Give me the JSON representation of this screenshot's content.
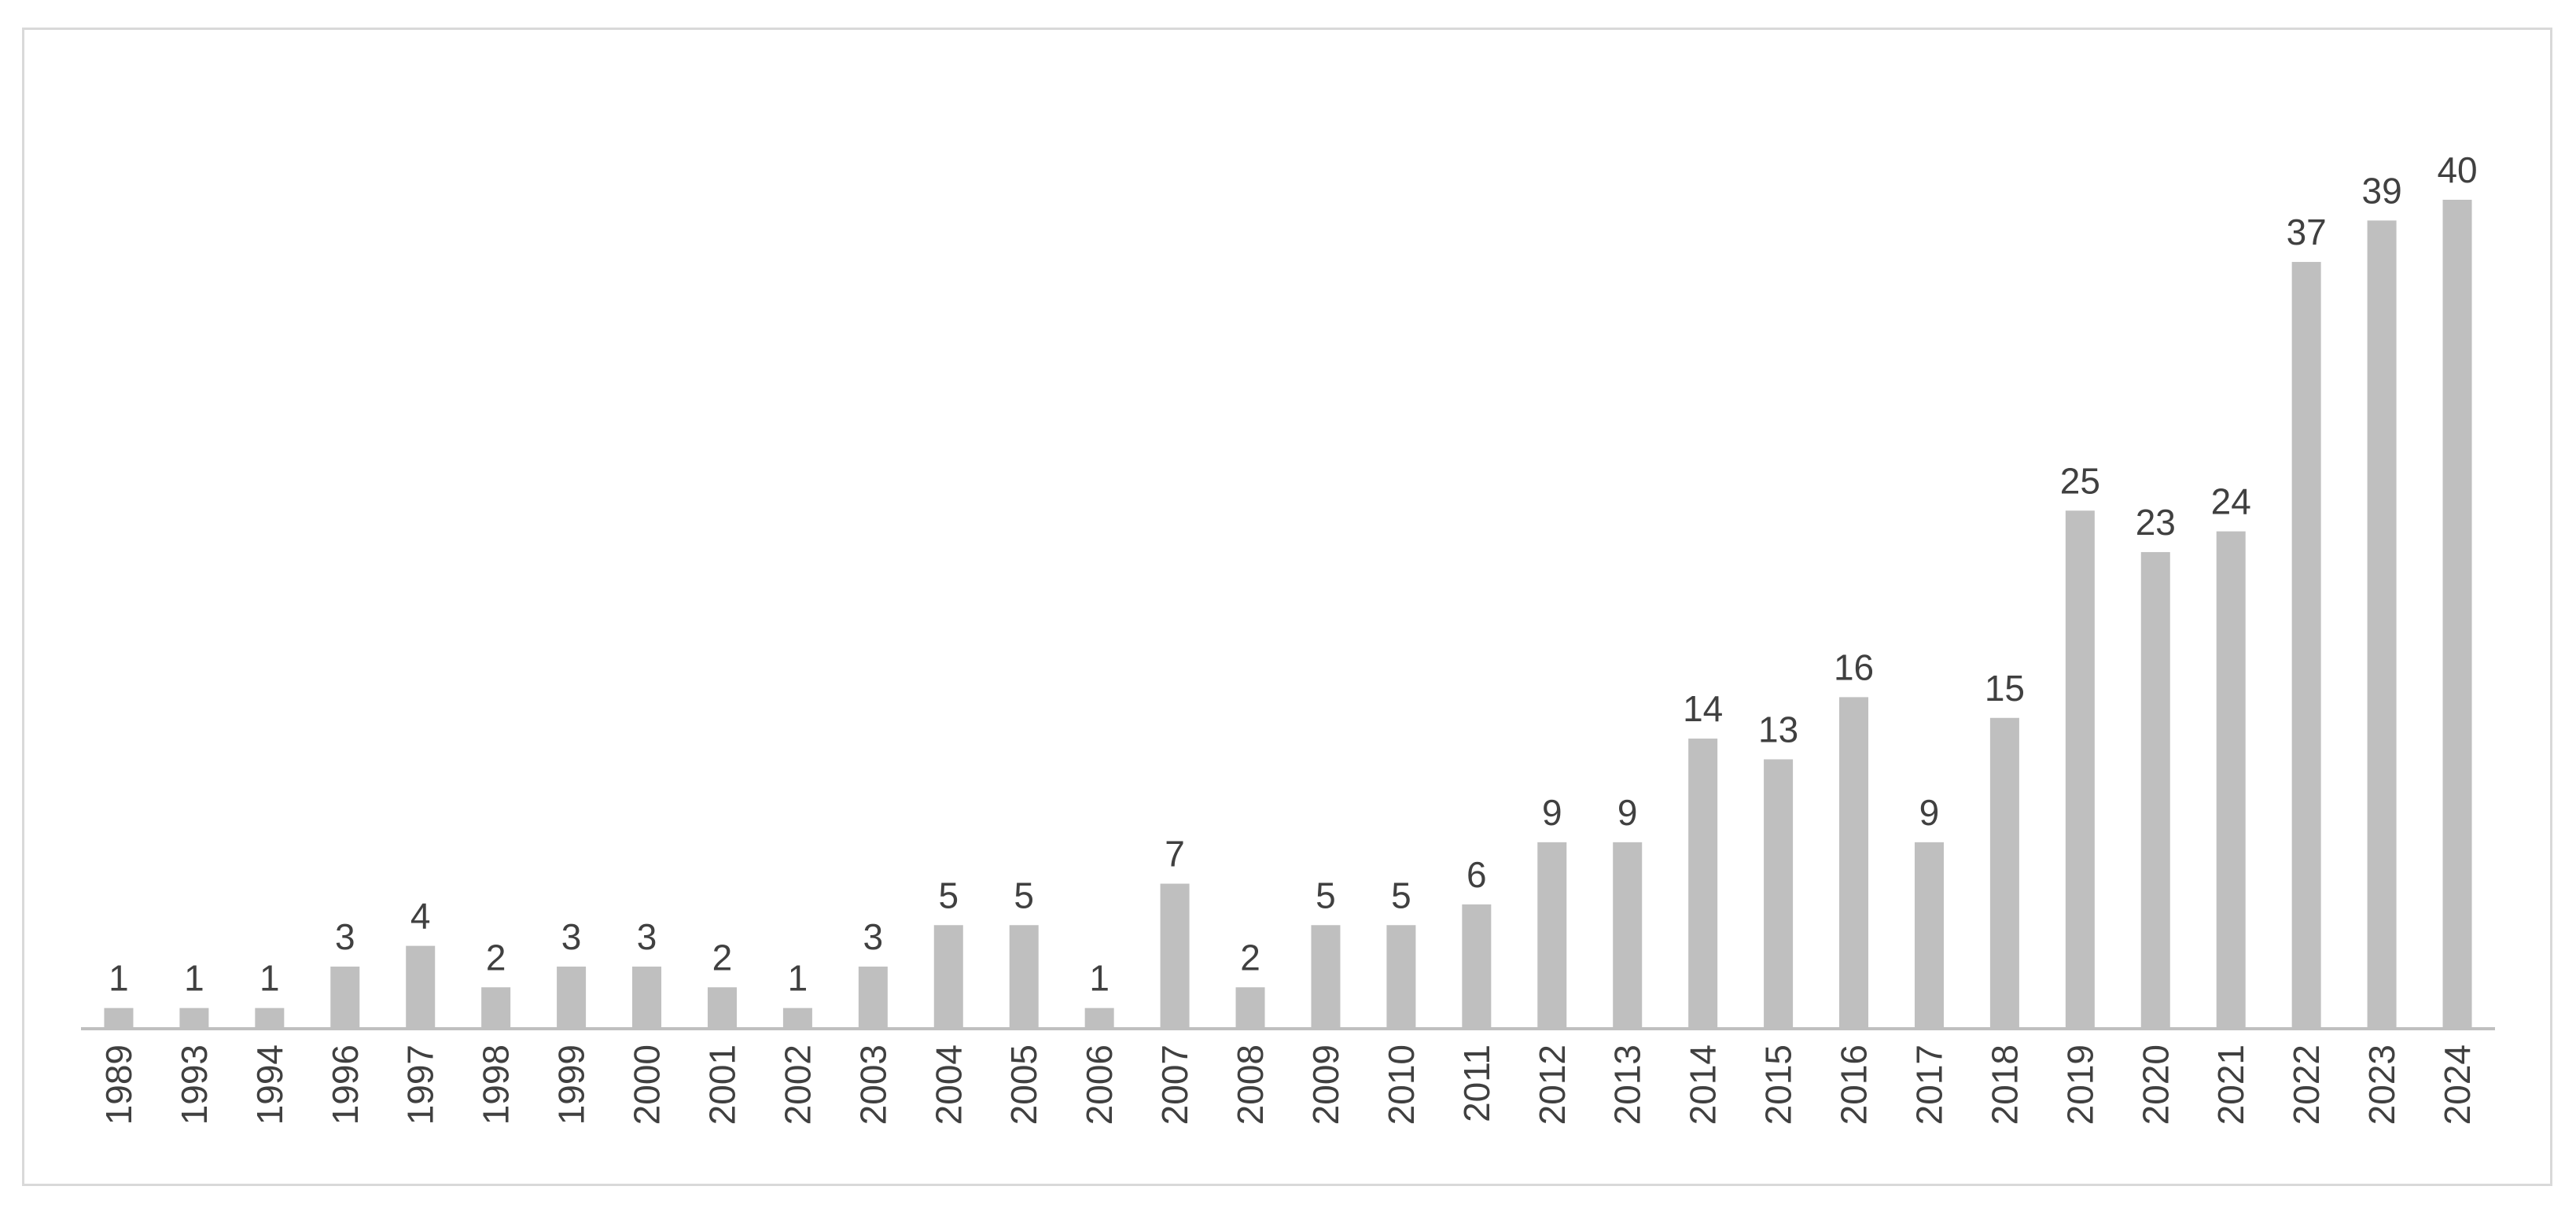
{
  "chart_data": {
    "type": "bar",
    "categories": [
      "1989",
      "1993",
      "1994",
      "1996",
      "1997",
      "1998",
      "1999",
      "2000",
      "2001",
      "2002",
      "2003",
      "2004",
      "2005",
      "2006",
      "2007",
      "2008",
      "2009",
      "2010",
      "2011",
      "2012",
      "2013",
      "2014",
      "2015",
      "2016",
      "2017",
      "2018",
      "2019",
      "2020",
      "2021",
      "2022",
      "2023",
      "2024"
    ],
    "values": [
      1,
      1,
      1,
      3,
      4,
      2,
      3,
      3,
      2,
      1,
      3,
      5,
      5,
      1,
      7,
      2,
      5,
      5,
      6,
      9,
      9,
      14,
      13,
      16,
      9,
      15,
      25,
      23,
      24,
      37,
      39,
      40
    ],
    "data_labels": [
      "1",
      "1",
      "1",
      "3",
      "4",
      "2",
      "3",
      "3",
      "2",
      "1",
      "3",
      "5",
      "5",
      "1",
      "7",
      "2",
      "5",
      "5",
      "6",
      "9",
      "9",
      "14",
      "13",
      "16",
      "9",
      "15",
      "25",
      "23",
      "24",
      "37",
      "39",
      "40"
    ],
    "title": "",
    "xlabel": "",
    "ylabel": "",
    "ylim": [
      0,
      40
    ],
    "grid": false,
    "legend": "none",
    "bar_color": "#bfbfbf",
    "text_color": "#404040",
    "axis_color": "#bfbfbf",
    "tick_label_orientation": "vertical"
  }
}
